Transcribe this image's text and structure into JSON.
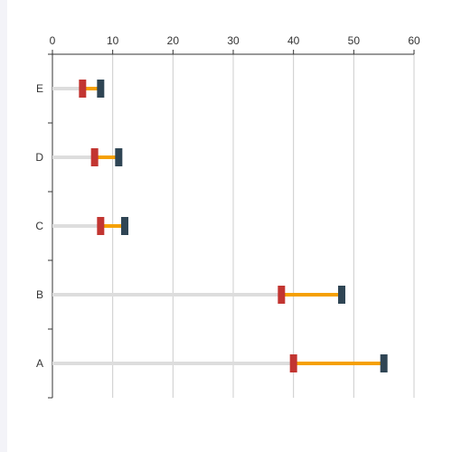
{
  "chart_data": {
    "type": "bar",
    "orientation": "horizontal",
    "x_axis_position": "top",
    "xlim": [
      0,
      60
    ],
    "x_ticks": [
      0,
      10,
      20,
      30,
      40,
      50,
      60
    ],
    "grid": true,
    "legend": "none",
    "categories": [
      "E",
      "D",
      "C",
      "B",
      "A"
    ],
    "series": [
      {
        "values": [
          5,
          7,
          8,
          38,
          40
        ],
        "color": "#c23531"
      },
      {
        "values": [
          8,
          11,
          12,
          48,
          55
        ],
        "color": "#2f4554"
      }
    ],
    "colors": {
      "track": "#dddddd",
      "range": "#f5a000",
      "start_marker": "#c23531",
      "end_marker": "#2f4554",
      "grid": "#cccccc",
      "axis": "#333333"
    }
  }
}
